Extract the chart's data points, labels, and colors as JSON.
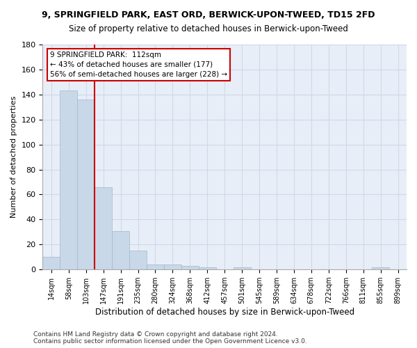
{
  "title1": "9, SPRINGFIELD PARK, EAST ORD, BERWICK-UPON-TWEED, TD15 2FD",
  "title2": "Size of property relative to detached houses in Berwick-upon-Tweed",
  "xlabel": "Distribution of detached houses by size in Berwick-upon-Tweed",
  "ylabel": "Number of detached properties",
  "footer1": "Contains HM Land Registry data © Crown copyright and database right 2024.",
  "footer2": "Contains public sector information licensed under the Open Government Licence v3.0.",
  "bar_labels": [
    "14sqm",
    "58sqm",
    "103sqm",
    "147sqm",
    "191sqm",
    "235sqm",
    "280sqm",
    "324sqm",
    "368sqm",
    "412sqm",
    "457sqm",
    "501sqm",
    "545sqm",
    "589sqm",
    "634sqm",
    "678sqm",
    "722sqm",
    "766sqm",
    "811sqm",
    "855sqm",
    "899sqm"
  ],
  "bar_values": [
    10,
    143,
    136,
    66,
    31,
    15,
    4,
    4,
    3,
    2,
    0,
    2,
    0,
    0,
    0,
    0,
    0,
    0,
    0,
    2,
    0
  ],
  "bar_color": "#c8d8e8",
  "bar_edge_color": "#a0b8cc",
  "grid_color": "#d0d8e8",
  "background_color": "#e8eef8",
  "ann_line1": "9 SPRINGFIELD PARK:  112sqm",
  "ann_line2": "← 43% of detached houses are smaller (177)",
  "ann_line3": "56% of semi-detached houses are larger (228) →",
  "property_line_x": 2.5,
  "property_line_color": "#cc0000",
  "annotation_box_color": "#cc0000",
  "ylim": [
    0,
    180
  ],
  "yticks": [
    0,
    20,
    40,
    60,
    80,
    100,
    120,
    140,
    160,
    180
  ]
}
